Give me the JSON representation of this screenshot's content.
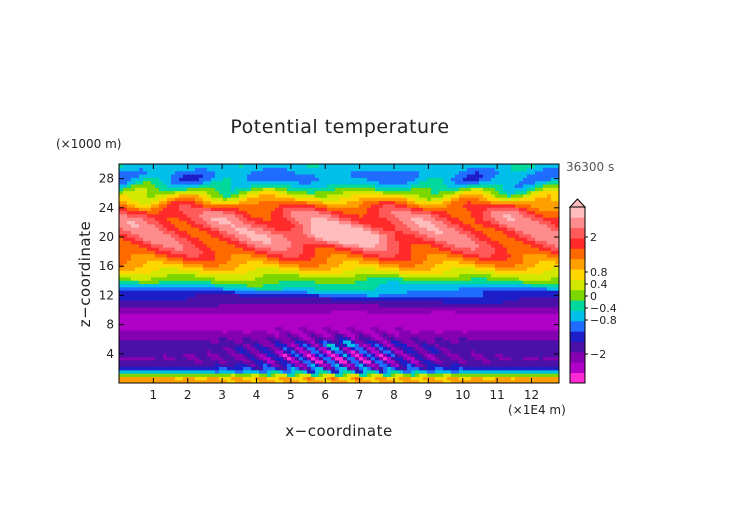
{
  "chart_data": {
    "type": "heatmap",
    "title": "Potential temperature",
    "xlabel": "x−coordinate",
    "ylabel": "z−coordinate",
    "x_unit": "(×1E4 m)",
    "z_unit": "(×1000 m)",
    "time_label": "36300 s",
    "xlim": [
      0,
      12.8
    ],
    "ylim": [
      0,
      30
    ],
    "x_ticks": [
      "1",
      "2",
      "3",
      "4",
      "5",
      "6",
      "7",
      "8",
      "9",
      "10",
      "11",
      "12"
    ],
    "y_ticks": [
      "4",
      "8",
      "12",
      "16",
      "20",
      "24",
      "28"
    ],
    "colorbar": {
      "labels": [
        "2",
        "0.8",
        "0.4",
        "0",
        "−0.4",
        "−0.8",
        "−2"
      ],
      "colors": [
        "#ff2ad4",
        "#b000c8",
        "#8400b0",
        "#4a10a8",
        "#1e1ec8",
        "#1f6cff",
        "#00bfe8",
        "#00d89c",
        "#7ad800",
        "#d2e800",
        "#ffd700",
        "#ffa000",
        "#ff6a00",
        "#ff2a2a",
        "#ff5a5a",
        "#ff8c8c",
        "#ffbcbc"
      ],
      "extend_top": true
    },
    "field_bands": [
      {
        "z": [
          0,
          1.3
        ],
        "level": "0.4"
      },
      {
        "z": [
          1.3,
          4
        ],
        "level": "−0.4"
      },
      {
        "z": [
          4,
          12
        ],
        "level": "−0.8"
      },
      {
        "z": [
          12,
          15
        ],
        "level": "0.4"
      },
      {
        "z": [
          15,
          22
        ],
        "level": "0.8"
      },
      {
        "z": [
          22,
          26
        ],
        "level": "2"
      },
      {
        "z": [
          26,
          30
        ],
        "level": "0"
      }
    ]
  }
}
